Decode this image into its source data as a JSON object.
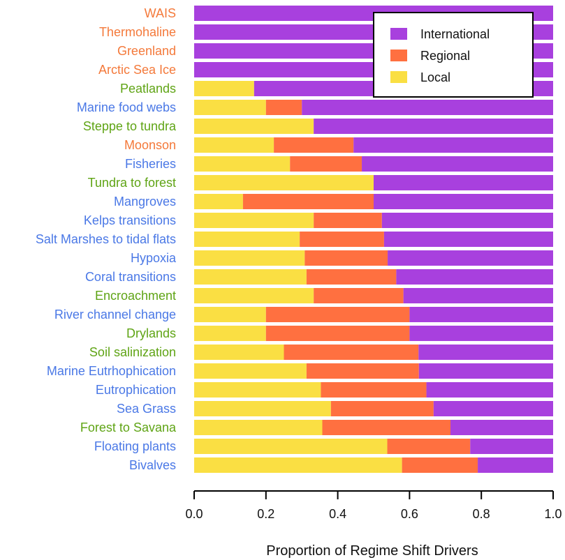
{
  "chart_data": {
    "type": "bar",
    "orientation": "horizontal",
    "stacked": true,
    "xlabel": "Proportion of Regime Shift Drivers",
    "xlim": [
      0,
      1
    ],
    "xticks": [
      "0.0",
      "0.2",
      "0.4",
      "0.6",
      "0.8",
      "1.0"
    ],
    "grid": false,
    "legend_position": "top-right",
    "category_colors": {
      "climate": "#F4793A",
      "marine": "#4A78E6",
      "terrestrial": "#5FA415"
    },
    "categories": [
      {
        "label": "WAIS",
        "group": "climate"
      },
      {
        "label": "Thermohaline",
        "group": "climate"
      },
      {
        "label": "Greenland",
        "group": "climate"
      },
      {
        "label": "Arctic Sea Ice",
        "group": "climate"
      },
      {
        "label": "Peatlands",
        "group": "terrestrial"
      },
      {
        "label": "Marine food webs",
        "group": "marine"
      },
      {
        "label": "Steppe to tundra",
        "group": "terrestrial"
      },
      {
        "label": "Moonson",
        "group": "climate"
      },
      {
        "label": "Fisheries",
        "group": "marine"
      },
      {
        "label": "Tundra to forest",
        "group": "terrestrial"
      },
      {
        "label": "Mangroves",
        "group": "marine"
      },
      {
        "label": "Kelps transitions",
        "group": "marine"
      },
      {
        "label": "Salt Marshes to tidal flats",
        "group": "marine"
      },
      {
        "label": "Hypoxia",
        "group": "marine"
      },
      {
        "label": "Coral transitions",
        "group": "marine"
      },
      {
        "label": "Encroachment",
        "group": "terrestrial"
      },
      {
        "label": "River channel change",
        "group": "marine"
      },
      {
        "label": "Drylands",
        "group": "terrestrial"
      },
      {
        "label": "Soil salinization",
        "group": "terrestrial"
      },
      {
        "label": "Marine Eutrhophication",
        "group": "marine"
      },
      {
        "label": "Eutrophication",
        "group": "marine"
      },
      {
        "label": "Sea Grass",
        "group": "marine"
      },
      {
        "label": "Forest to Savana",
        "group": "terrestrial"
      },
      {
        "label": "Floating plants",
        "group": "marine"
      },
      {
        "label": "Bivalves",
        "group": "marine"
      }
    ],
    "series": [
      {
        "name": "Local",
        "color": "#FADF43",
        "values": [
          0,
          0,
          0,
          0,
          0.167,
          0.2,
          0.333,
          0.222,
          0.267,
          0.5,
          0.136,
          0.333,
          0.294,
          0.308,
          0.313,
          0.333,
          0.2,
          0.2,
          0.25,
          0.313,
          0.353,
          0.381,
          0.357,
          0.538,
          0.579
        ]
      },
      {
        "name": "Regional",
        "color": "#FF7040",
        "values": [
          0,
          0,
          0,
          0,
          0,
          0.1,
          0,
          0.222,
          0.2,
          0,
          0.364,
          0.19,
          0.235,
          0.231,
          0.25,
          0.25,
          0.4,
          0.4,
          0.375,
          0.313,
          0.294,
          0.286,
          0.357,
          0.231,
          0.211
        ]
      },
      {
        "name": "International",
        "color": "#A840DE",
        "values": [
          1,
          1,
          1,
          1,
          0.833,
          0.7,
          0.667,
          0.556,
          0.533,
          0.5,
          0.5,
          0.477,
          0.471,
          0.461,
          0.437,
          0.417,
          0.4,
          0.4,
          0.375,
          0.374,
          0.353,
          0.333,
          0.286,
          0.231,
          0.21
        ]
      }
    ],
    "legend": [
      "International",
      "Regional",
      "Local"
    ]
  }
}
